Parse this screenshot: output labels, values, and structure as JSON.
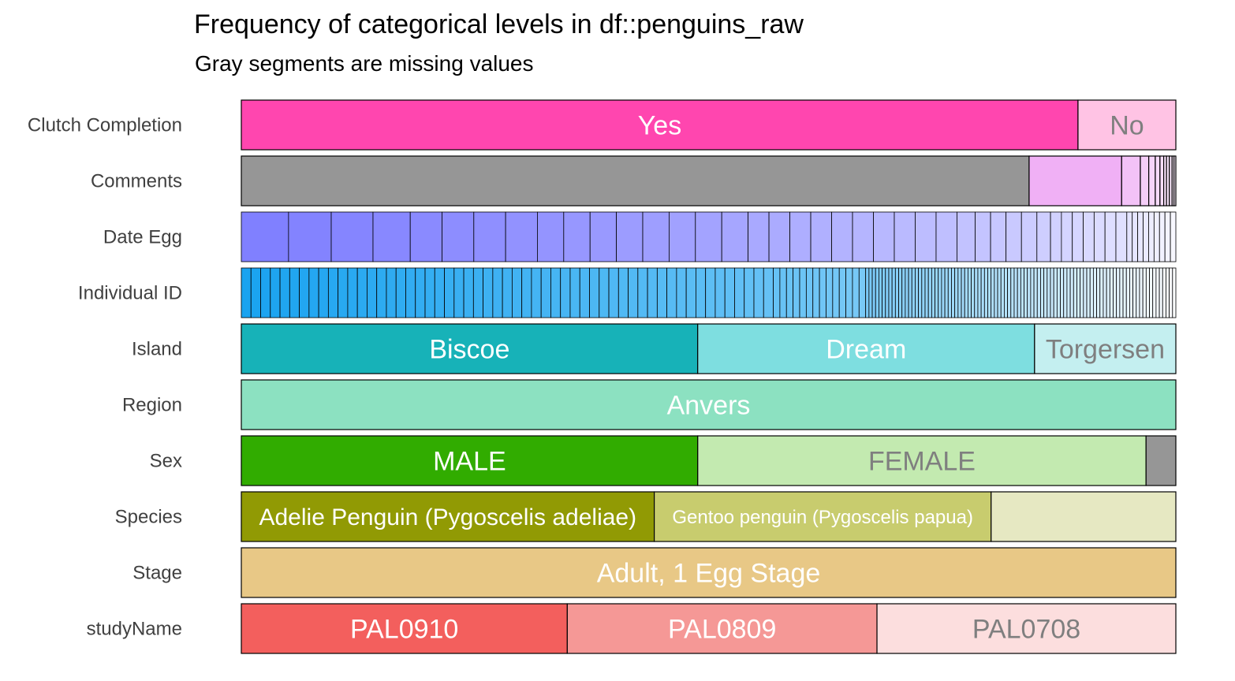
{
  "chart_data": {
    "type": "bar",
    "orientation": "horizontal",
    "stacked": "proportion",
    "title": "Frequency of categorical levels in df::penguins_raw",
    "subtitle": "Gray segments are missing values",
    "missing_color": "#969696",
    "rows": [
      {
        "name": "Clutch Completion",
        "segments": [
          {
            "label": "Yes",
            "proportion": 0.8953,
            "color": "#FF46AF",
            "text_color": "#FFFFFF",
            "font_size": 34
          },
          {
            "label": "No",
            "proportion": 0.1047,
            "color": "#FFC3E4",
            "text_color": "#7F7F7F",
            "font_size": 34
          }
        ]
      },
      {
        "name": "Comments",
        "segments": [
          {
            "label": "",
            "proportion": 0.843,
            "color": "#969696",
            "missing": true
          },
          {
            "label": "",
            "proportion": 0.099,
            "color": "#F0B0F5"
          },
          {
            "label": "",
            "proportion": 0.02,
            "color": "#F3C2F7"
          },
          {
            "label": "",
            "proportion": 0.009,
            "color": "#F5CEF8"
          },
          {
            "label": "",
            "proportion": 0.007,
            "color": "#F6D4F9"
          },
          {
            "label": "",
            "proportion": 0.005,
            "color": "#F7DAFA"
          },
          {
            "label": "",
            "proportion": 0.004,
            "color": "#F8DEFB"
          },
          {
            "label": "",
            "proportion": 0.003,
            "color": "#F9E2FB"
          },
          {
            "label": "",
            "proportion": 0.003,
            "color": "#FAE6FC"
          },
          {
            "label": "",
            "proportion": 0.003,
            "color": "#FAE8FC"
          },
          {
            "label": "",
            "proportion": 0.002,
            "color": "#FBEBFC"
          },
          {
            "label": "",
            "proportion": 0.002,
            "color": "#FCEEFD"
          }
        ]
      },
      {
        "name": "Date Egg",
        "gradient": {
          "from": "#8080FF",
          "to": "#F7F7FF"
        },
        "segment_proportions": [
          0.052,
          0.047,
          0.046,
          0.041,
          0.035,
          0.035,
          0.035,
          0.035,
          0.029,
          0.029,
          0.029,
          0.029,
          0.029,
          0.029,
          0.029,
          0.029,
          0.023,
          0.023,
          0.023,
          0.023,
          0.023,
          0.023,
          0.023,
          0.023,
          0.023,
          0.023,
          0.02,
          0.017,
          0.017,
          0.017,
          0.017,
          0.015,
          0.012,
          0.012,
          0.012,
          0.012,
          0.012,
          0.012,
          0.012,
          0.006,
          0.006,
          0.006,
          0.006,
          0.006,
          0.006,
          0.006,
          0.006,
          0.006
        ]
      },
      {
        "name": "Individual ID",
        "gradient": {
          "from": "#1AA3F0",
          "to": "#FBFDFF"
        },
        "segments_by_count": [
          {
            "count": 55,
            "proportion": 0.0085
          },
          {
            "count": 14,
            "proportion": 0.0058
          },
          {
            "count": 94,
            "proportion": 0.0029
          }
        ]
      },
      {
        "name": "Island",
        "segments": [
          {
            "label": "Biscoe",
            "proportion": 0.4884,
            "color": "#17B2B8",
            "text_color": "#FFFFFF",
            "font_size": 34
          },
          {
            "label": "Dream",
            "proportion": 0.3605,
            "color": "#7EDEE0",
            "text_color": "#FFFFFF",
            "font_size": 34
          },
          {
            "label": "Torgersen",
            "proportion": 0.1512,
            "color": "#C4EFF0",
            "text_color": "#7F7F7F",
            "font_size": 34
          }
        ]
      },
      {
        "name": "Region",
        "segments": [
          {
            "label": "Anvers",
            "proportion": 1.0,
            "color": "#8CE1C1",
            "text_color": "#FFFFFF",
            "font_size": 34
          }
        ]
      },
      {
        "name": "Sex",
        "segments": [
          {
            "label": "MALE",
            "proportion": 0.4884,
            "color": "#31AC00",
            "text_color": "#FFFFFF",
            "font_size": 34
          },
          {
            "label": "FEMALE",
            "proportion": 0.4797,
            "color": "#C3EAB0",
            "text_color": "#7F7F7F",
            "font_size": 34
          },
          {
            "label": "",
            "proportion": 0.0319,
            "color": "#969696",
            "missing": true
          }
        ]
      },
      {
        "name": "Species",
        "segments": [
          {
            "label": "Adelie Penguin (Pygoscelis adeliae)",
            "proportion": 0.4419,
            "color": "#919A04",
            "text_color": "#FFFFFF",
            "font_size": 30
          },
          {
            "label": "Gentoo penguin (Pygoscelis papua)",
            "proportion": 0.3605,
            "color": "#C8CC6E",
            "text_color": "#FFFFFF",
            "font_size": 24
          },
          {
            "label": "",
            "proportion": 0.1977,
            "color": "#E6E8C2"
          }
        ]
      },
      {
        "name": "Stage",
        "segments": [
          {
            "label": "Adult, 1 Egg Stage",
            "proportion": 1.0,
            "color": "#E8C886",
            "text_color": "#FFFFFF",
            "font_size": 34
          }
        ]
      },
      {
        "name": "studyName",
        "segments": [
          {
            "label": "PAL0910",
            "proportion": 0.3488,
            "color": "#F35F5D",
            "text_color": "#FFFFFF",
            "font_size": 34
          },
          {
            "label": "PAL0809",
            "proportion": 0.3314,
            "color": "#F59896",
            "text_color": "#FFFFFF",
            "font_size": 34
          },
          {
            "label": "PAL0708",
            "proportion": 0.3198,
            "color": "#FCDEDE",
            "text_color": "#7F7F7F",
            "font_size": 34
          }
        ]
      }
    ]
  }
}
